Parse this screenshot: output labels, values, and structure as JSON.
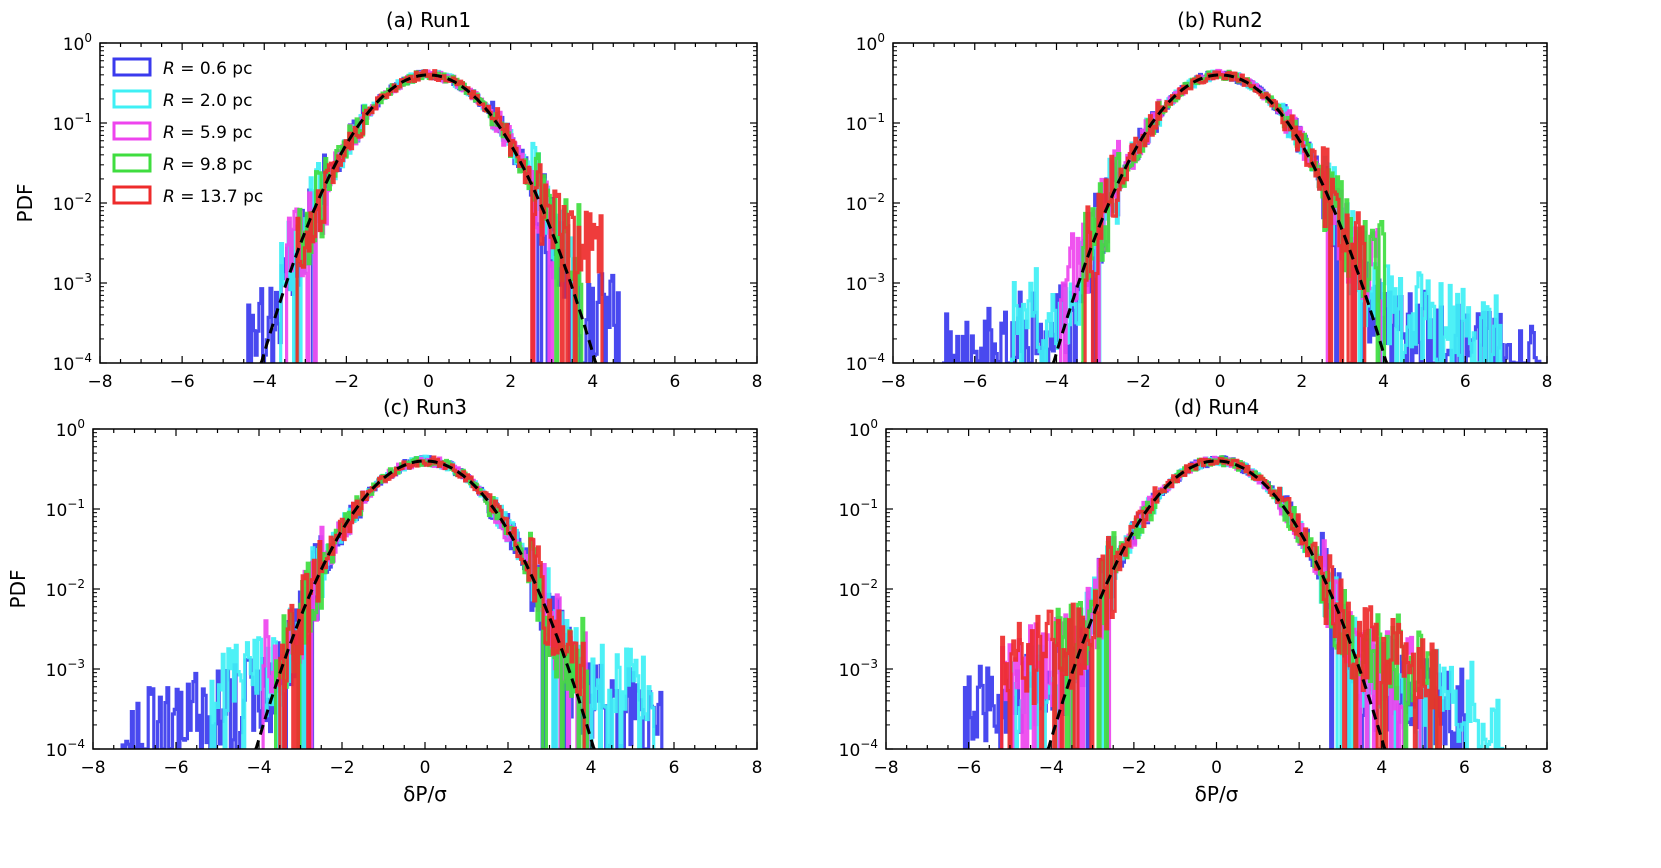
{
  "chart_data": [
    {
      "type": "histogram-line",
      "title": "(a) Run1",
      "ylabel": "PDF",
      "xlabel": "",
      "xlim": [
        -8,
        8
      ],
      "ylim": [
        0.0001,
        1
      ],
      "yscale": "log",
      "xticks": [
        "−8",
        "−6",
        "−4",
        "−2",
        "0",
        "2",
        "4",
        "6",
        "8"
      ],
      "yticks": [
        {
          "base": "10",
          "exp": "−4"
        },
        {
          "base": "10",
          "exp": "−3"
        },
        {
          "base": "10",
          "exp": "−2"
        },
        {
          "base": "10",
          "exp": "−1"
        },
        {
          "base": "10",
          "exp": "0"
        }
      ],
      "legend": {
        "placement": "top-left"
      },
      "series": [
        {
          "name": "R = 0.6 pc",
          "label_var": "R",
          "label_val": " = 0.6 pc",
          "color": "#3a3aee",
          "x_range": [
            -4.4,
            4.6
          ],
          "tail_level": 0.0007,
          "tail_start": 2.6
        },
        {
          "name": "R = 2.0 pc",
          "label_var": "R",
          "label_val": " = 2.0 pc",
          "color": "#3ff0f5",
          "x_range": [
            -3.6,
            3.5
          ],
          "tail_level": 0.003,
          "tail_start": 2.6
        },
        {
          "name": "R = 5.9 pc",
          "label_var": "R",
          "label_val": " = 5.9 pc",
          "color": "#ee44ee",
          "x_range": [
            -3.5,
            3.0
          ],
          "tail_level": 0.004,
          "tail_start": 2.4
        },
        {
          "name": "R = 9.8 pc",
          "label_var": "R",
          "label_val": " = 9.8 pc",
          "color": "#3fdd3f",
          "x_range": [
            -3.2,
            3.7
          ],
          "tail_level": 0.004,
          "tail_start": 2.6
        },
        {
          "name": "R = 13.7 pc",
          "label_var": "R",
          "label_val": " = 13.7 pc",
          "color": "#ee2b2b",
          "x_range": [
            -3.2,
            4.2
          ],
          "tail_level": 0.005,
          "tail_start": 2.5
        }
      ],
      "reference_curve": {
        "style": "dashed",
        "color": "#000000",
        "x_range": [
          -4.1,
          4.1
        ],
        "distribution": "gaussian",
        "mean": 0,
        "sigma": 1
      }
    },
    {
      "type": "histogram-line",
      "title": "(b) Run2",
      "ylabel": "",
      "xlabel": "",
      "xlim": [
        -8,
        8
      ],
      "ylim": [
        0.0001,
        1
      ],
      "yscale": "log",
      "xticks": [
        "−8",
        "−6",
        "−4",
        "−2",
        "0",
        "2",
        "4",
        "6",
        "8"
      ],
      "yticks": [
        {
          "base": "10",
          "exp": "−4"
        },
        {
          "base": "10",
          "exp": "−3"
        },
        {
          "base": "10",
          "exp": "−2"
        },
        {
          "base": "10",
          "exp": "−1"
        },
        {
          "base": "10",
          "exp": "0"
        }
      ],
      "series": [
        {
          "name": "R = 0.6 pc",
          "color": "#3a3aee",
          "x_range": [
            -6.8,
            7.8
          ],
          "tail_level": 0.0005,
          "tail_start": 2.7
        },
        {
          "name": "R = 2.0 pc",
          "color": "#3ff0f5",
          "x_range": [
            -5.1,
            6.9
          ],
          "tail_level": 0.0008,
          "tail_start": 2.8
        },
        {
          "name": "R = 5.9 pc",
          "color": "#ee44ee",
          "x_range": [
            -3.9,
            3.9
          ],
          "tail_level": 0.003,
          "tail_start": 2.6
        },
        {
          "name": "R = 9.8 pc",
          "color": "#3fdd3f",
          "x_range": [
            -3.4,
            4.0
          ],
          "tail_level": 0.003,
          "tail_start": 2.6
        },
        {
          "name": "R = 13.7 pc",
          "color": "#ee2b2b",
          "x_range": [
            -3.3,
            3.5
          ],
          "tail_level": 0.004,
          "tail_start": 2.6
        }
      ],
      "reference_curve": {
        "style": "dashed",
        "color": "#000000",
        "x_range": [
          -4.1,
          4.1
        ],
        "distribution": "gaussian",
        "mean": 0,
        "sigma": 1
      }
    },
    {
      "type": "histogram-line",
      "title": "(c) Run3",
      "ylabel": "PDF",
      "xlabel": "δP/σ",
      "xlim": [
        -8,
        8
      ],
      "ylim": [
        0.0001,
        1
      ],
      "yscale": "log",
      "xticks": [
        "−8",
        "−6",
        "−4",
        "−2",
        "0",
        "2",
        "4",
        "6",
        "8"
      ],
      "yticks": [
        {
          "base": "10",
          "exp": "−4"
        },
        {
          "base": "10",
          "exp": "−3"
        },
        {
          "base": "10",
          "exp": "−2"
        },
        {
          "base": "10",
          "exp": "−1"
        },
        {
          "base": "10",
          "exp": "0"
        }
      ],
      "series": [
        {
          "name": "R = 0.6 pc",
          "color": "#3a3aee",
          "x_range": [
            -7.3,
            5.7
          ],
          "tail_level": 0.0007,
          "tail_start": 2.7
        },
        {
          "name": "R = 2.0 pc",
          "color": "#3ff0f5",
          "x_range": [
            -5.2,
            5.5
          ],
          "tail_level": 0.0012,
          "tail_start": 2.8
        },
        {
          "name": "R = 5.9 pc",
          "color": "#ee44ee",
          "x_range": [
            -3.9,
            3.9
          ],
          "tail_level": 0.002,
          "tail_start": 2.6
        },
        {
          "name": "R = 9.8 pc",
          "color": "#3fdd3f",
          "x_range": [
            -3.6,
            3.9
          ],
          "tail_level": 0.002,
          "tail_start": 2.6
        },
        {
          "name": "R = 13.7 pc",
          "color": "#ee2b2b",
          "x_range": [
            -3.5,
            3.8
          ],
          "tail_level": 0.002,
          "tail_start": 2.6
        }
      ],
      "reference_curve": {
        "style": "dashed",
        "color": "#000000",
        "x_range": [
          -4.1,
          4.1
        ],
        "distribution": "gaussian",
        "mean": 0,
        "sigma": 1
      }
    },
    {
      "type": "histogram-line",
      "title": "(d) Run4",
      "ylabel": "",
      "xlabel": "δP/σ",
      "xlim": [
        -8,
        8
      ],
      "ylim": [
        0.0001,
        1
      ],
      "yscale": "log",
      "xticks": [
        "−8",
        "−6",
        "−4",
        "−2",
        "0",
        "2",
        "4",
        "6",
        "8"
      ],
      "yticks": [
        {
          "base": "10",
          "exp": "−4"
        },
        {
          "base": "10",
          "exp": "−3"
        },
        {
          "base": "10",
          "exp": "−2"
        },
        {
          "base": "10",
          "exp": "−1"
        },
        {
          "base": "10",
          "exp": "0"
        }
      ],
      "series": [
        {
          "name": "R = 0.6 pc",
          "color": "#3a3aee",
          "x_range": [
            -6.1,
            6.0
          ],
          "tail_level": 0.0009,
          "tail_start": 2.7
        },
        {
          "name": "R = 2.0 pc",
          "color": "#3ff0f5",
          "x_range": [
            -5.0,
            6.9
          ],
          "tail_level": 0.0012,
          "tail_start": 2.7
        },
        {
          "name": "R = 5.9 pc",
          "color": "#ee44ee",
          "x_range": [
            -5.2,
            4.9
          ],
          "tail_level": 0.002,
          "tail_start": 2.6
        },
        {
          "name": "R = 9.8 pc",
          "color": "#3fdd3f",
          "x_range": [
            -3.9,
            5.3
          ],
          "tail_level": 0.0025,
          "tail_start": 2.6
        },
        {
          "name": "R = 13.7 pc",
          "color": "#ee2b2b",
          "x_range": [
            -5.2,
            5.4
          ],
          "tail_level": 0.0025,
          "tail_start": 2.6
        }
      ],
      "reference_curve": {
        "style": "dashed",
        "color": "#000000",
        "x_range": [
          -4.1,
          4.1
        ],
        "distribution": "gaussian",
        "mean": 0,
        "sigma": 1
      }
    }
  ]
}
